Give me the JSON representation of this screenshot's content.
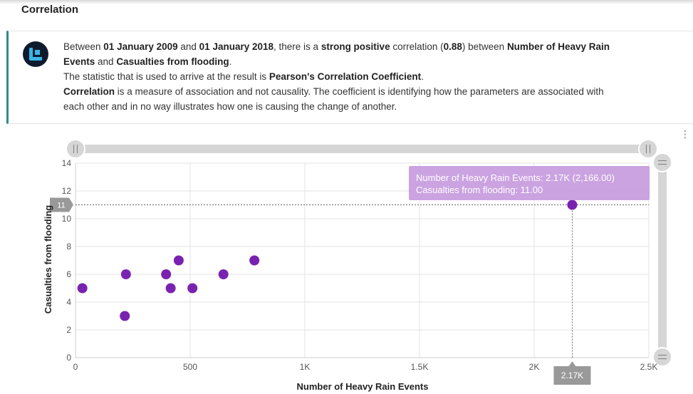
{
  "section": {
    "title": "Correlation"
  },
  "insight": {
    "line1_pre": "Between ",
    "start_date": "01 January 2009",
    "line1_and": " and ",
    "end_date": "01 January 2018",
    "line1_mid": ", there is a ",
    "strength": "strong positive",
    "line1_corr_pre": " correlation (",
    "coefficient": "0.88",
    "line1_corr_post": ") between ",
    "param_x": "Number of Heavy Rain Events",
    "line1_and2": " and ",
    "param_y": "Casualties from flooding",
    "line1_end": ".",
    "line2_pre": "The statistic that is used to arrive at the result is ",
    "statistic": "Pearson's Correlation Coefficient",
    "line2_end": ".",
    "line3_bold": "Correlation",
    "line3_rest": " is a measure of association and not causality. The coefficient is identifying how the parameters are associated with each other and in no way illustrates how one is causing the change of another."
  },
  "menu": {
    "dots": "⋮"
  },
  "chart_data": {
    "type": "scatter",
    "xlabel": "Number of Heavy Rain Events",
    "ylabel": "Casualties from flooding",
    "xlim": [
      0,
      2500
    ],
    "ylim": [
      0,
      14
    ],
    "x_ticks": [
      0,
      500,
      1000,
      1500,
      2000,
      2500
    ],
    "x_tick_labels": [
      "0",
      "500",
      "1K",
      "1.5K",
      "2K",
      "2.5K"
    ],
    "y_ticks": [
      0,
      2,
      4,
      6,
      8,
      10,
      12,
      14
    ],
    "y_tick_labels": [
      "0",
      "2",
      "4",
      "6",
      "8",
      "10",
      "12",
      "14"
    ],
    "grid": true,
    "color": "#7a22b0",
    "points": [
      {
        "x": 30,
        "y": 5
      },
      {
        "x": 215,
        "y": 3
      },
      {
        "x": 220,
        "y": 6
      },
      {
        "x": 395,
        "y": 6
      },
      {
        "x": 415,
        "y": 5
      },
      {
        "x": 450,
        "y": 7
      },
      {
        "x": 510,
        "y": 5
      },
      {
        "x": 645,
        "y": 6
      },
      {
        "x": 780,
        "y": 7
      },
      {
        "x": 2166,
        "y": 11
      }
    ],
    "highlight": {
      "x": 2166,
      "y": 11,
      "x_badge": "2.17K",
      "y_badge": "11",
      "tooltip_line1": "Number of Heavy Rain Events: 2.17K (2,166.00)",
      "tooltip_line2": "Casualties from flooding: 11.00",
      "tooltip_color": "#c79bde"
    }
  }
}
